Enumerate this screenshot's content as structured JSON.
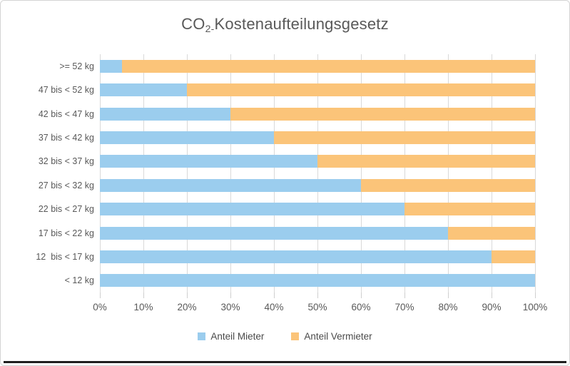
{
  "title": {
    "prefix": "CO",
    "subscript": "2-",
    "rest": "Kostenaufteilungsgesetz",
    "full_text": "CO2-Kostenaufteilungsgesetz"
  },
  "colors": {
    "mieter_blue": "#9BCDEE",
    "vermieter_orange": "#FBC479",
    "gridline": "#D9D9D9",
    "text": "#595959",
    "chart_border": "#D4D4D4",
    "bottom_edge": "#1F1F1F",
    "background": "#FFFFFF"
  },
  "chart_data": {
    "type": "bar",
    "orientation": "horizontal",
    "stacked": true,
    "title": "CO2-Kostenaufteilungsgesetz",
    "categories": [
      ">= 52 kg",
      "47 bis < 52 kg",
      "42 bis < 47 kg",
      "37 bis < 42 kg",
      "32 bis < 37 kg",
      "27 bis < 32 kg",
      "22 bis < 27 kg",
      "17 bis < 22 kg",
      "12  bis < 17 kg",
      "< 12 kg"
    ],
    "categories_note": "listed top to bottom as displayed",
    "series": [
      {
        "name": "Anteil Mieter",
        "color": "#9BCDEE",
        "values": [
          5,
          20,
          30,
          40,
          50,
          60,
          70,
          80,
          90,
          100
        ]
      },
      {
        "name": "Anteil Vermieter",
        "color": "#FBC479",
        "values": [
          95,
          80,
          70,
          60,
          50,
          40,
          30,
          20,
          10,
          0
        ]
      }
    ],
    "x_ticks": [
      "0%",
      "10%",
      "20%",
      "30%",
      "40%",
      "50%",
      "60%",
      "70%",
      "80%",
      "90%",
      "100%"
    ],
    "xlim": [
      0,
      100
    ],
    "xlabel": "",
    "ylabel": "",
    "grid": "vertical",
    "legend_position": "bottom"
  }
}
